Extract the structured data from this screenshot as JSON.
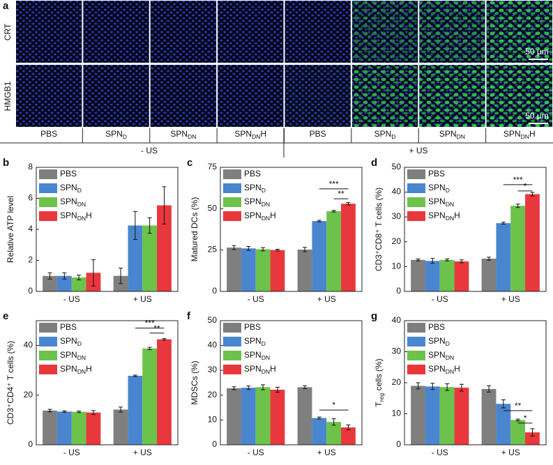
{
  "microscopy": {
    "panel_label": "a",
    "row_labels": [
      "CRT",
      "HMGB1"
    ],
    "scale_bars": [
      "50 µm",
      "50 µm"
    ],
    "column_labels": [
      "PBS",
      "SPN<sub>D</sub>",
      "SPN<sub>DN</sub>",
      "SPN<sub>DN</sub>H",
      "PBS",
      "SPN<sub>D</sub>",
      "SPN<sub>DN</sub>",
      "SPN<sub>DN</sub>H"
    ],
    "group_labels": [
      "- US",
      "+ US"
    ]
  },
  "chart_data": [
    {
      "type": "bar",
      "panel_label": "b",
      "ylabel": "Relative ATP level",
      "categories": [
        "- US",
        "+ US"
      ],
      "ylim": [
        0,
        8
      ],
      "yticks": [
        0,
        2,
        4,
        6,
        8
      ],
      "series": [
        {
          "name": "PBS",
          "color": "#7f7f7f",
          "values": [
            1.0,
            1.0
          ],
          "errors": [
            0.2,
            0.5
          ]
        },
        {
          "name": "SPN<sub>D</sub>",
          "color": "#4a86d0",
          "values": [
            1.0,
            4.25
          ],
          "errors": [
            0.2,
            0.9
          ]
        },
        {
          "name": "SPN<sub>DN</sub>",
          "color": "#6cc24a",
          "values": [
            0.9,
            4.25
          ],
          "errors": [
            0.15,
            0.5
          ]
        },
        {
          "name": "SPN<sub>DN</sub>H",
          "color": "#e8383d",
          "values": [
            1.2,
            5.55
          ],
          "errors": [
            0.85,
            1.2
          ]
        }
      ],
      "annotations": []
    },
    {
      "type": "bar",
      "panel_label": "c",
      "ylabel": "Matured DCs (%)",
      "categories": [
        "- US",
        "+ US"
      ],
      "ylim": [
        0,
        75
      ],
      "yticks": [
        0,
        25,
        50,
        75
      ],
      "series": [
        {
          "name": "PBS",
          "color": "#7f7f7f",
          "values": [
            26.5,
            25.3
          ],
          "errors": [
            1.2,
            1.3
          ]
        },
        {
          "name": "SPN<sub>D</sub>",
          "color": "#4a86d0",
          "values": [
            26,
            42.5
          ],
          "errors": [
            1.2,
            0.5
          ]
        },
        {
          "name": "SPN<sub>DN</sub>",
          "color": "#6cc24a",
          "values": [
            25.5,
            48.5
          ],
          "errors": [
            1,
            0.5
          ]
        },
        {
          "name": "SPN<sub>DN</sub>H",
          "color": "#e8383d",
          "values": [
            25,
            53
          ],
          "errors": [
            0.5,
            0.7
          ]
        }
      ],
      "annotations": [
        {
          "text": "***",
          "y": 62,
          "between": [
            1,
            3
          ]
        },
        {
          "text": "**",
          "y": 56,
          "between": [
            2,
            3
          ]
        }
      ]
    },
    {
      "type": "bar",
      "panel_label": "d",
      "ylabel": "CD3⁺CD8⁺ T cells (%)",
      "categories": [
        "- US",
        "+ US"
      ],
      "ylim": [
        0,
        50
      ],
      "yticks": [
        0,
        10,
        20,
        30,
        40,
        50
      ],
      "series": [
        {
          "name": "PBS",
          "color": "#7f7f7f",
          "values": [
            12.7,
            13.2
          ],
          "errors": [
            0.4,
            0.6
          ]
        },
        {
          "name": "SPN<sub>D</sub>",
          "color": "#4a86d0",
          "values": [
            12.3,
            27.5
          ],
          "errors": [
            1,
            0.4
          ]
        },
        {
          "name": "SPN<sub>DN</sub>",
          "color": "#6cc24a",
          "values": [
            12.7,
            34.5
          ],
          "errors": [
            0.4,
            0.7
          ]
        },
        {
          "name": "SPN<sub>DN</sub>H",
          "color": "#e8383d",
          "values": [
            12.1,
            39.2
          ],
          "errors": [
            0.6,
            0.7
          ]
        }
      ],
      "annotations": [
        {
          "text": "***",
          "y": 43,
          "between": [
            1,
            3
          ]
        },
        {
          "text": "*",
          "y": 40.5,
          "between": [
            2,
            3
          ]
        }
      ]
    },
    {
      "type": "bar",
      "panel_label": "e",
      "ylabel": "CD3⁺CD4⁺ T cells (%)",
      "categories": [
        "- US",
        "+ US"
      ],
      "ylim": [
        0,
        50
      ],
      "yticks": [
        0,
        20,
        40
      ],
      "series": [
        {
          "name": "PBS",
          "color": "#7f7f7f",
          "values": [
            13.8,
            14.2
          ],
          "errors": [
            0.5,
            1
          ]
        },
        {
          "name": "SPN<sub>D</sub>",
          "color": "#4a86d0",
          "values": [
            13.4,
            27.8
          ],
          "errors": [
            0.3,
            0.3
          ]
        },
        {
          "name": "SPN<sub>DN</sub>",
          "color": "#6cc24a",
          "values": [
            13.3,
            38.8
          ],
          "errors": [
            0.3,
            0.5
          ]
        },
        {
          "name": "SPN<sub>DN</sub>H",
          "color": "#e8383d",
          "values": [
            13.0,
            42.5
          ],
          "errors": [
            0.8,
            0.3
          ]
        }
      ],
      "annotations": [
        {
          "text": "***",
          "y": 47,
          "between": [
            1,
            3
          ]
        },
        {
          "text": "**",
          "y": 45,
          "between": [
            2,
            3
          ]
        }
      ]
    },
    {
      "type": "bar",
      "panel_label": "f",
      "ylabel": "MDSCs (%)",
      "categories": [
        "- US",
        "+ US"
      ],
      "ylim": [
        0,
        50
      ],
      "yticks": [
        0,
        10,
        20,
        30,
        40,
        50
      ],
      "series": [
        {
          "name": "PBS",
          "color": "#7f7f7f",
          "values": [
            22.8,
            23.2
          ],
          "errors": [
            0.6,
            0.6
          ]
        },
        {
          "name": "SPN<sub>D</sub>",
          "color": "#4a86d0",
          "values": [
            23,
            10.8
          ],
          "errors": [
            0.7,
            0.4
          ]
        },
        {
          "name": "SPN<sub>DN</sub>",
          "color": "#6cc24a",
          "values": [
            23.2,
            9.2
          ],
          "errors": [
            1,
            1.3
          ]
        },
        {
          "name": "SPN<sub>DN</sub>H",
          "color": "#e8383d",
          "values": [
            22.2,
            7
          ],
          "errors": [
            1,
            1
          ]
        }
      ],
      "annotations": [
        {
          "text": "*",
          "y": 14,
          "between": [
            1,
            3
          ]
        }
      ]
    },
    {
      "type": "bar",
      "panel_label": "g",
      "ylabel": "T<sub>reg</sub> cells (%)",
      "categories": [
        "- US",
        "+ US"
      ],
      "ylim": [
        0,
        40
      ],
      "yticks": [
        0,
        10,
        20,
        30,
        40
      ],
      "series": [
        {
          "name": "PBS",
          "color": "#7f7f7f",
          "values": [
            19,
            18
          ],
          "errors": [
            1,
            1
          ]
        },
        {
          "name": "SPN<sub>D</sub>",
          "color": "#4a86d0",
          "values": [
            18.8,
            13.2
          ],
          "errors": [
            1,
            1.3
          ]
        },
        {
          "name": "SPN<sub>DN</sub>",
          "color": "#6cc24a",
          "values": [
            18.6,
            8
          ],
          "errors": [
            1.1,
            0.3
          ]
        },
        {
          "name": "SPN<sub>DN</sub>H",
          "color": "#e8383d",
          "values": [
            18.4,
            4
          ],
          "errors": [
            1.1,
            1.2
          ]
        }
      ],
      "annotations": [
        {
          "text": "**",
          "y": 11,
          "between": [
            1,
            3
          ]
        },
        {
          "text": "*",
          "y": 7,
          "between": [
            2,
            3
          ]
        }
      ]
    }
  ]
}
